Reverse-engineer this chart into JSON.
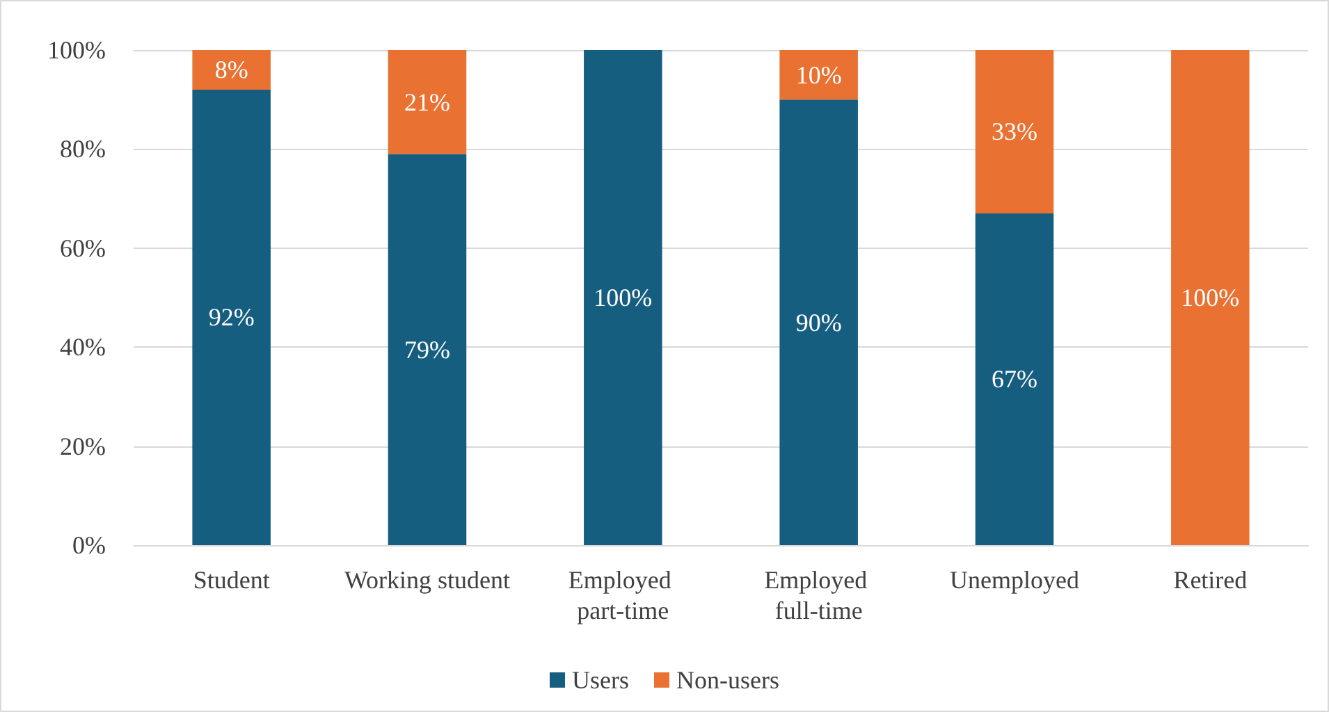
{
  "chart_data": {
    "type": "bar",
    "stacked": true,
    "categories": [
      "Student",
      "Working student",
      "Employed part-time",
      "Employed full-time",
      "Unemployed",
      "Retired"
    ],
    "series": [
      {
        "name": "Users",
        "color": "#165e80",
        "values": [
          92,
          79,
          100,
          90,
          67,
          0
        ],
        "value_labels": [
          "92%",
          "79%",
          "100%",
          "90%",
          "67%",
          null
        ]
      },
      {
        "name": "Non-users",
        "color": "#e97132",
        "values": [
          8,
          21,
          0,
          10,
          33,
          100
        ],
        "value_labels": [
          "8%",
          "21%",
          null,
          "10%",
          "33%",
          "100%"
        ]
      }
    ],
    "ylim": [
      0,
      100
    ],
    "yticks": [
      {
        "value": 0,
        "label": "0%"
      },
      {
        "value": 20,
        "label": "20%"
      },
      {
        "value": 40,
        "label": "40%"
      },
      {
        "value": 60,
        "label": "60%"
      },
      {
        "value": 80,
        "label": "80%"
      },
      {
        "value": 100,
        "label": "100%"
      }
    ],
    "grid": "y",
    "legend": "bottom"
  }
}
